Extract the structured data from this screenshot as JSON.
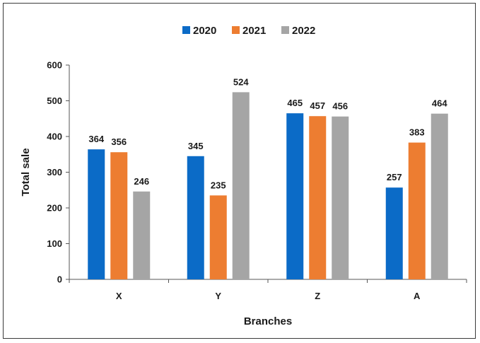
{
  "chart_data": {
    "type": "bar",
    "categories": [
      "X",
      "Y",
      "Z",
      "A"
    ],
    "series": [
      {
        "name": "2020",
        "color": "#0B6BC7",
        "values": [
          364,
          345,
          465,
          257
        ]
      },
      {
        "name": "2021",
        "color": "#ED7D31",
        "values": [
          356,
          235,
          457,
          383
        ]
      },
      {
        "name": "2022",
        "color": "#A5A5A5",
        "values": [
          246,
          524,
          456,
          464
        ]
      }
    ],
    "xlabel": "Branches",
    "ylabel": "Total sale",
    "ylim": [
      0,
      600
    ],
    "yticks": [
      "0",
      "100",
      "200",
      "300",
      "400",
      "500",
      "600"
    ],
    "grid": false,
    "legend_position": "top-center",
    "data_labels": true
  }
}
